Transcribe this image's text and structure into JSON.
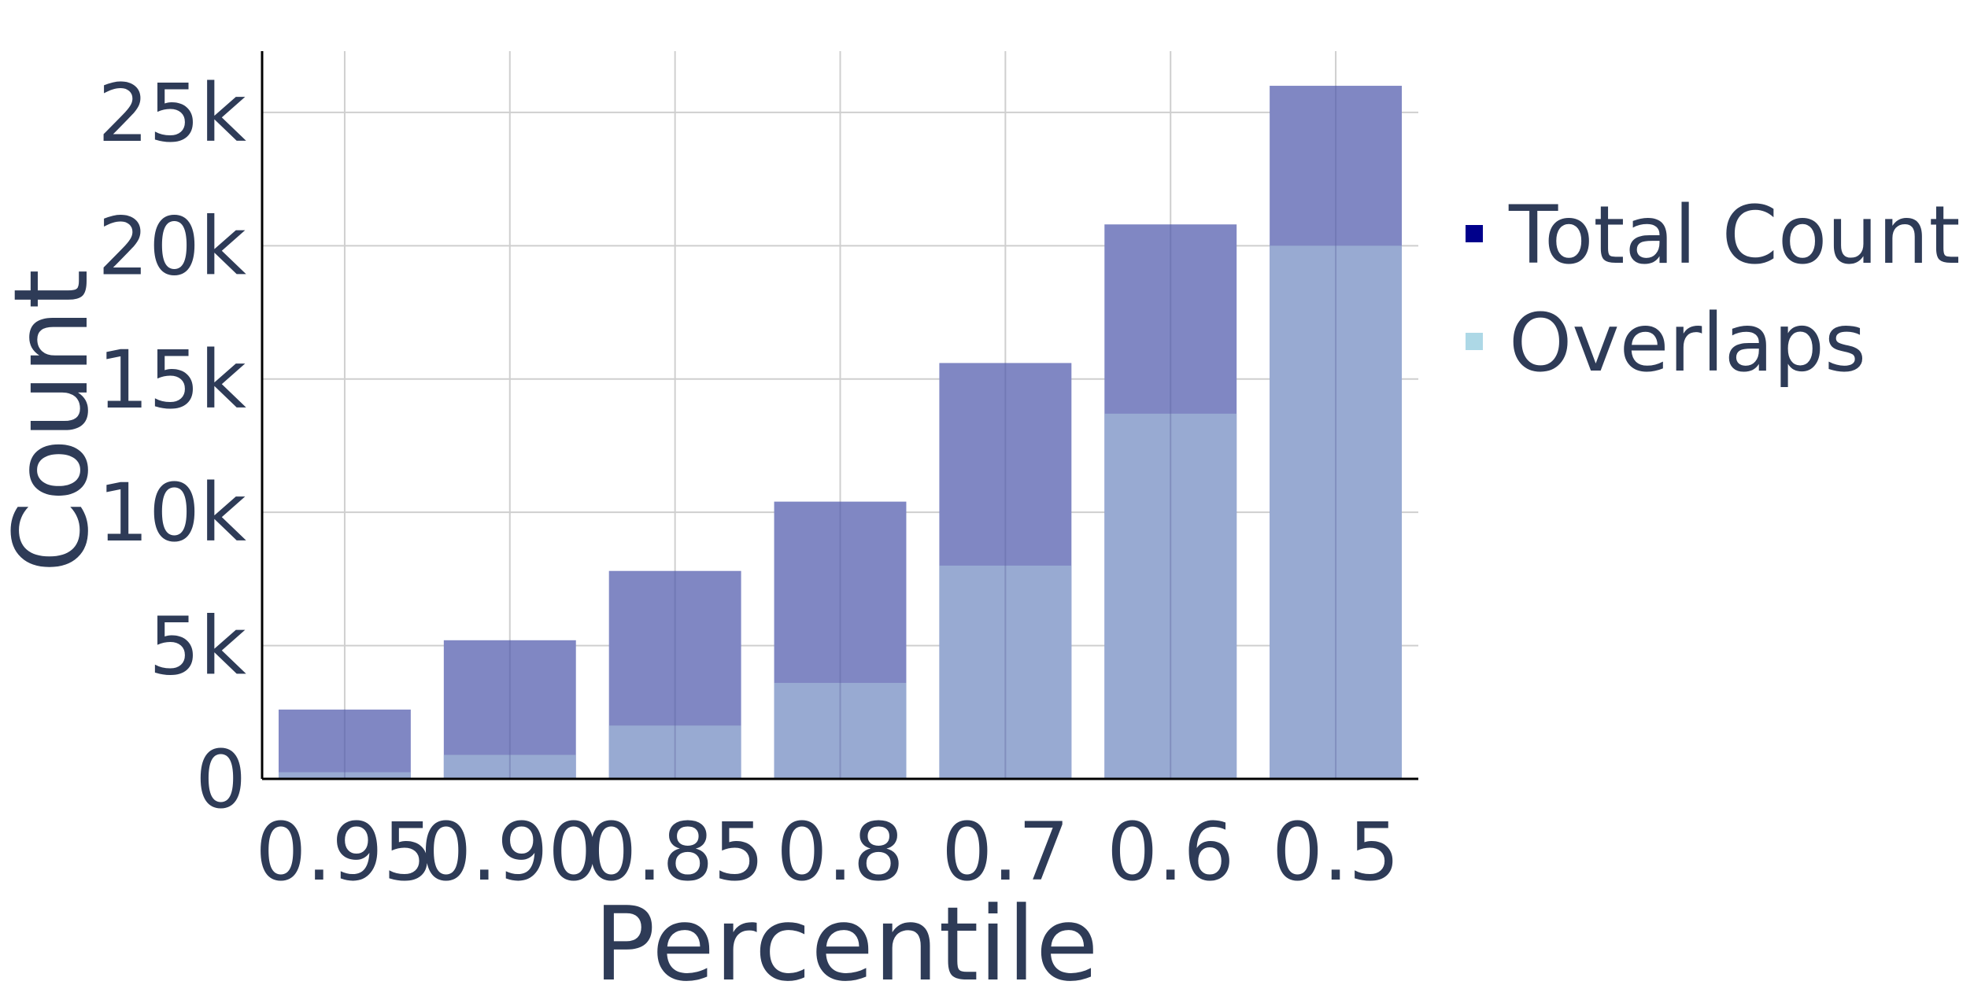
{
  "chart_data": {
    "type": "bar",
    "categories": [
      "0.95",
      "0.9",
      "0.85",
      "0.8",
      "0.7",
      "0.6",
      "0.5"
    ],
    "category_labels": [
      "0.95",
      "0.90",
      "0.85",
      "0.8",
      "0.7",
      "0.6",
      "0.5"
    ],
    "series": [
      {
        "name": "Total Count",
        "values": [
          2600,
          5200,
          7800,
          10400,
          15600,
          20800,
          26000
        ],
        "color": "#00008b"
      },
      {
        "name": "Overlaps",
        "values": [
          250,
          900,
          2000,
          3600,
          8000,
          13700,
          20000
        ],
        "color": "#add8e6"
      }
    ],
    "bar_fill_colors": {
      "Total Count": "#8087c3",
      "Overlaps": "#9aaed4"
    },
    "xlabel": "Percentile",
    "ylabel": "Count",
    "ylim": [
      0,
      27300
    ],
    "yticks": [
      0,
      5000,
      10000,
      15000,
      20000,
      25000
    ],
    "ytick_labels": [
      "0",
      "5k",
      "10k",
      "15k",
      "20k",
      "25k"
    ],
    "grid": true,
    "legend_position": "right"
  }
}
